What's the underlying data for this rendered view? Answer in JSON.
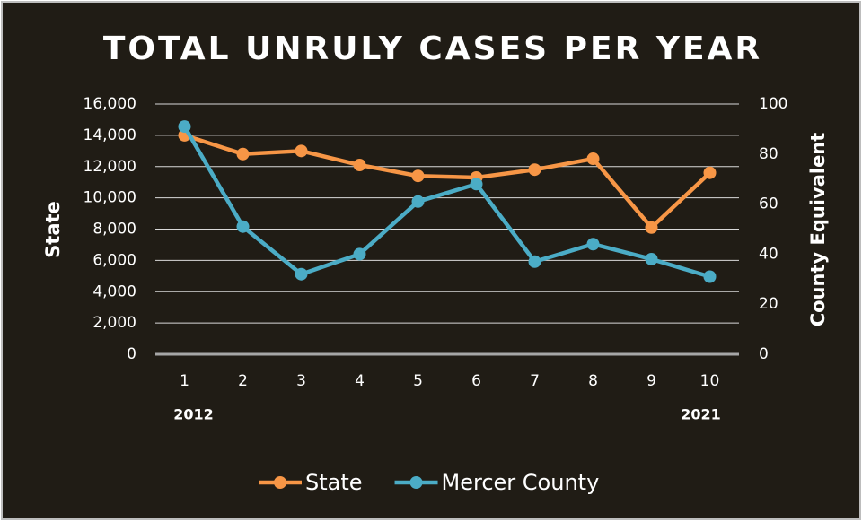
{
  "chart_data": {
    "type": "line",
    "title": "TOTAL UNRULY CASES PER YEAR",
    "y_label": "State",
    "y2_label": "County Equivalent",
    "categories": [
      "1",
      "2",
      "3",
      "4",
      "5",
      "6",
      "7",
      "8",
      "9",
      "10"
    ],
    "annotations": [
      "2012",
      "2021"
    ],
    "series": [
      {
        "name": "State",
        "color": "#f79646",
        "values": [
          14000,
          12800,
          13000,
          12100,
          11400,
          11300,
          11800,
          12500,
          8100,
          11600
        ]
      },
      {
        "name": "Mercer County",
        "color": "#4bacc6",
        "axis": "y2",
        "values": [
          91,
          51,
          32,
          40,
          61,
          68,
          37,
          44,
          38,
          31
        ]
      }
    ],
    "ylim": [
      0,
      16000
    ],
    "yticks": [
      0,
      {
        "value": 2000,
        "label": "2,000"
      },
      {
        "value": 4000,
        "label": "4,000"
      },
      {
        "value": 6000,
        "label": "6,000"
      },
      {
        "value": 8000,
        "label": "8,000"
      },
      {
        "value": 10000,
        "label": "10,000"
      },
      {
        "value": 12000,
        "label": "12,000"
      },
      {
        "value": 14000,
        "label": "14,000"
      },
      {
        "value": 16000,
        "label": "16,000"
      }
    ],
    "y2lim": [
      0,
      100
    ],
    "y2ticks": [
      0,
      20,
      40,
      60,
      80,
      100
    ],
    "grid": true,
    "legend": "bottom"
  }
}
